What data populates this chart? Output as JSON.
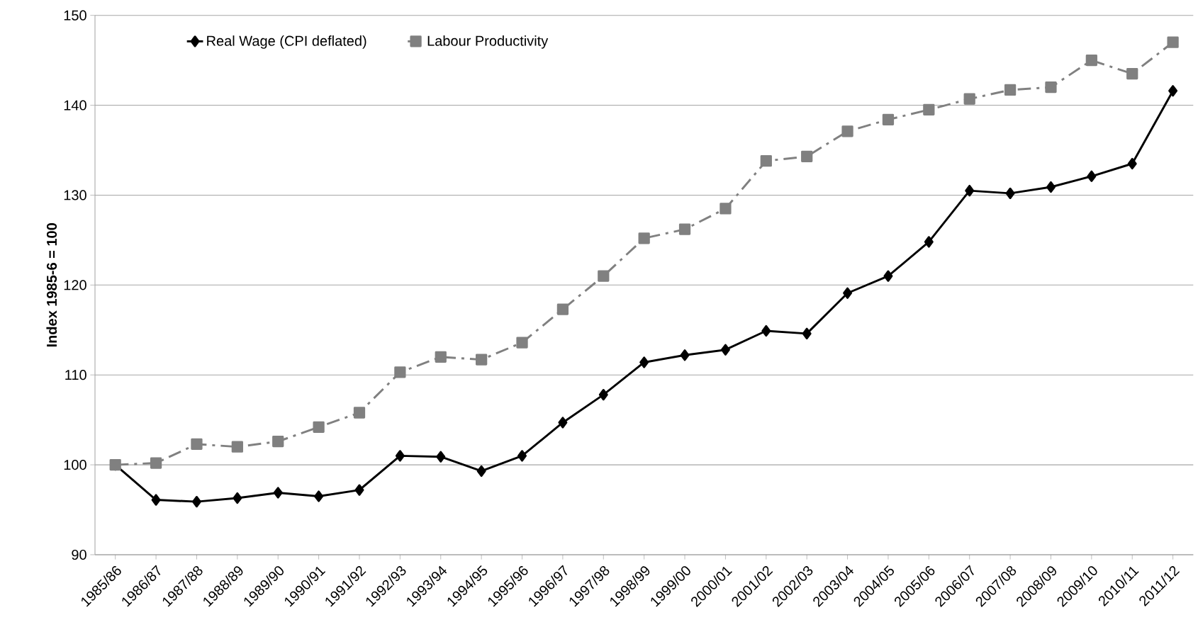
{
  "chart_data": {
    "type": "line",
    "ylabel": "Index 1985-6 = 100",
    "categories": [
      "1985/86",
      "1986/87",
      "1987/88",
      "1988/89",
      "1989/90",
      "1990/91",
      "1991/92",
      "1992/93",
      "1993/94",
      "1994/95",
      "1995/96",
      "1996/97",
      "1997/98",
      "1998/99",
      "1999/00",
      "2000/01",
      "2001/02",
      "2002/03",
      "2003/04",
      "2004/05",
      "2005/06",
      "2006/07",
      "2007/08",
      "2008/09",
      "2009/10",
      "2010/11",
      "2011/12"
    ],
    "series": [
      {
        "name": "Real Wage (CPI deflated)",
        "color": "#000000",
        "marker": "diamond",
        "line_style": "solid",
        "values": [
          100,
          96.1,
          95.9,
          96.3,
          96.9,
          96.5,
          97.2,
          101.0,
          100.9,
          99.3,
          101.0,
          104.7,
          107.8,
          111.4,
          112.2,
          112.8,
          114.9,
          114.6,
          119.1,
          121.0,
          124.8,
          130.5,
          130.2,
          130.9,
          132.1,
          133.5,
          141.6
        ]
      },
      {
        "name": "Labour Productivity",
        "color": "#808080",
        "marker": "square",
        "line_style": "dashed",
        "values": [
          100,
          100.2,
          102.3,
          102.0,
          102.6,
          104.2,
          105.8,
          110.3,
          112.0,
          111.7,
          113.6,
          117.3,
          121.0,
          125.2,
          126.2,
          128.5,
          133.8,
          134.3,
          137.1,
          138.4,
          139.5,
          140.7,
          141.7,
          142.0,
          145.0,
          143.5,
          147.0
        ]
      }
    ],
    "ylim": [
      90,
      150
    ],
    "yticks": [
      90,
      100,
      110,
      120,
      130,
      140,
      150
    ],
    "grid": "y",
    "legend": "top left"
  }
}
